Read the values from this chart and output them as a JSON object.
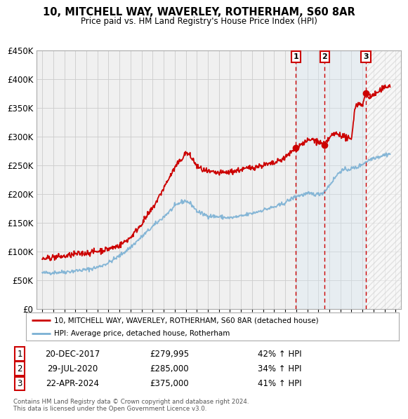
{
  "title": "10, MITCHELL WAY, WAVERLEY, ROTHERHAM, S60 8AR",
  "subtitle": "Price paid vs. HM Land Registry's House Price Index (HPI)",
  "red_line_label": "10, MITCHELL WAY, WAVERLEY, ROTHERHAM, S60 8AR (detached house)",
  "blue_line_label": "HPI: Average price, detached house, Rotherham",
  "footer": "Contains HM Land Registry data © Crown copyright and database right 2024.\nThis data is licensed under the Open Government Licence v3.0.",
  "sale_points": [
    {
      "label": "1",
      "date": 2017.97,
      "price": 279995
    },
    {
      "label": "2",
      "date": 2020.57,
      "price": 285000
    },
    {
      "label": "3",
      "date": 2024.31,
      "price": 375000
    }
  ],
  "table_rows": [
    [
      "1",
      "20-DEC-2017",
      "£279,995",
      "42% ↑ HPI"
    ],
    [
      "2",
      "29-JUL-2020",
      "£285,000",
      "34% ↑ HPI"
    ],
    [
      "3",
      "22-APR-2024",
      "£375,000",
      "41% ↑ HPI"
    ]
  ],
  "red_color": "#cc0000",
  "blue_color": "#7ab0d4",
  "shade_color": "#d8e8f5",
  "hatch_color": "#cccccc",
  "grid_color": "#cccccc",
  "bg_color": "#f0f0f0",
  "ylim": [
    0,
    450000
  ],
  "yticks": [
    0,
    50000,
    100000,
    150000,
    200000,
    250000,
    300000,
    350000,
    400000,
    450000
  ],
  "xlim": [
    1994.5,
    2027.5
  ],
  "xticks": [
    1995,
    1996,
    1997,
    1998,
    1999,
    2000,
    2001,
    2002,
    2003,
    2004,
    2005,
    2006,
    2007,
    2008,
    2009,
    2010,
    2011,
    2012,
    2013,
    2014,
    2015,
    2016,
    2017,
    2018,
    2019,
    2020,
    2021,
    2022,
    2023,
    2024,
    2025,
    2026,
    2027
  ]
}
